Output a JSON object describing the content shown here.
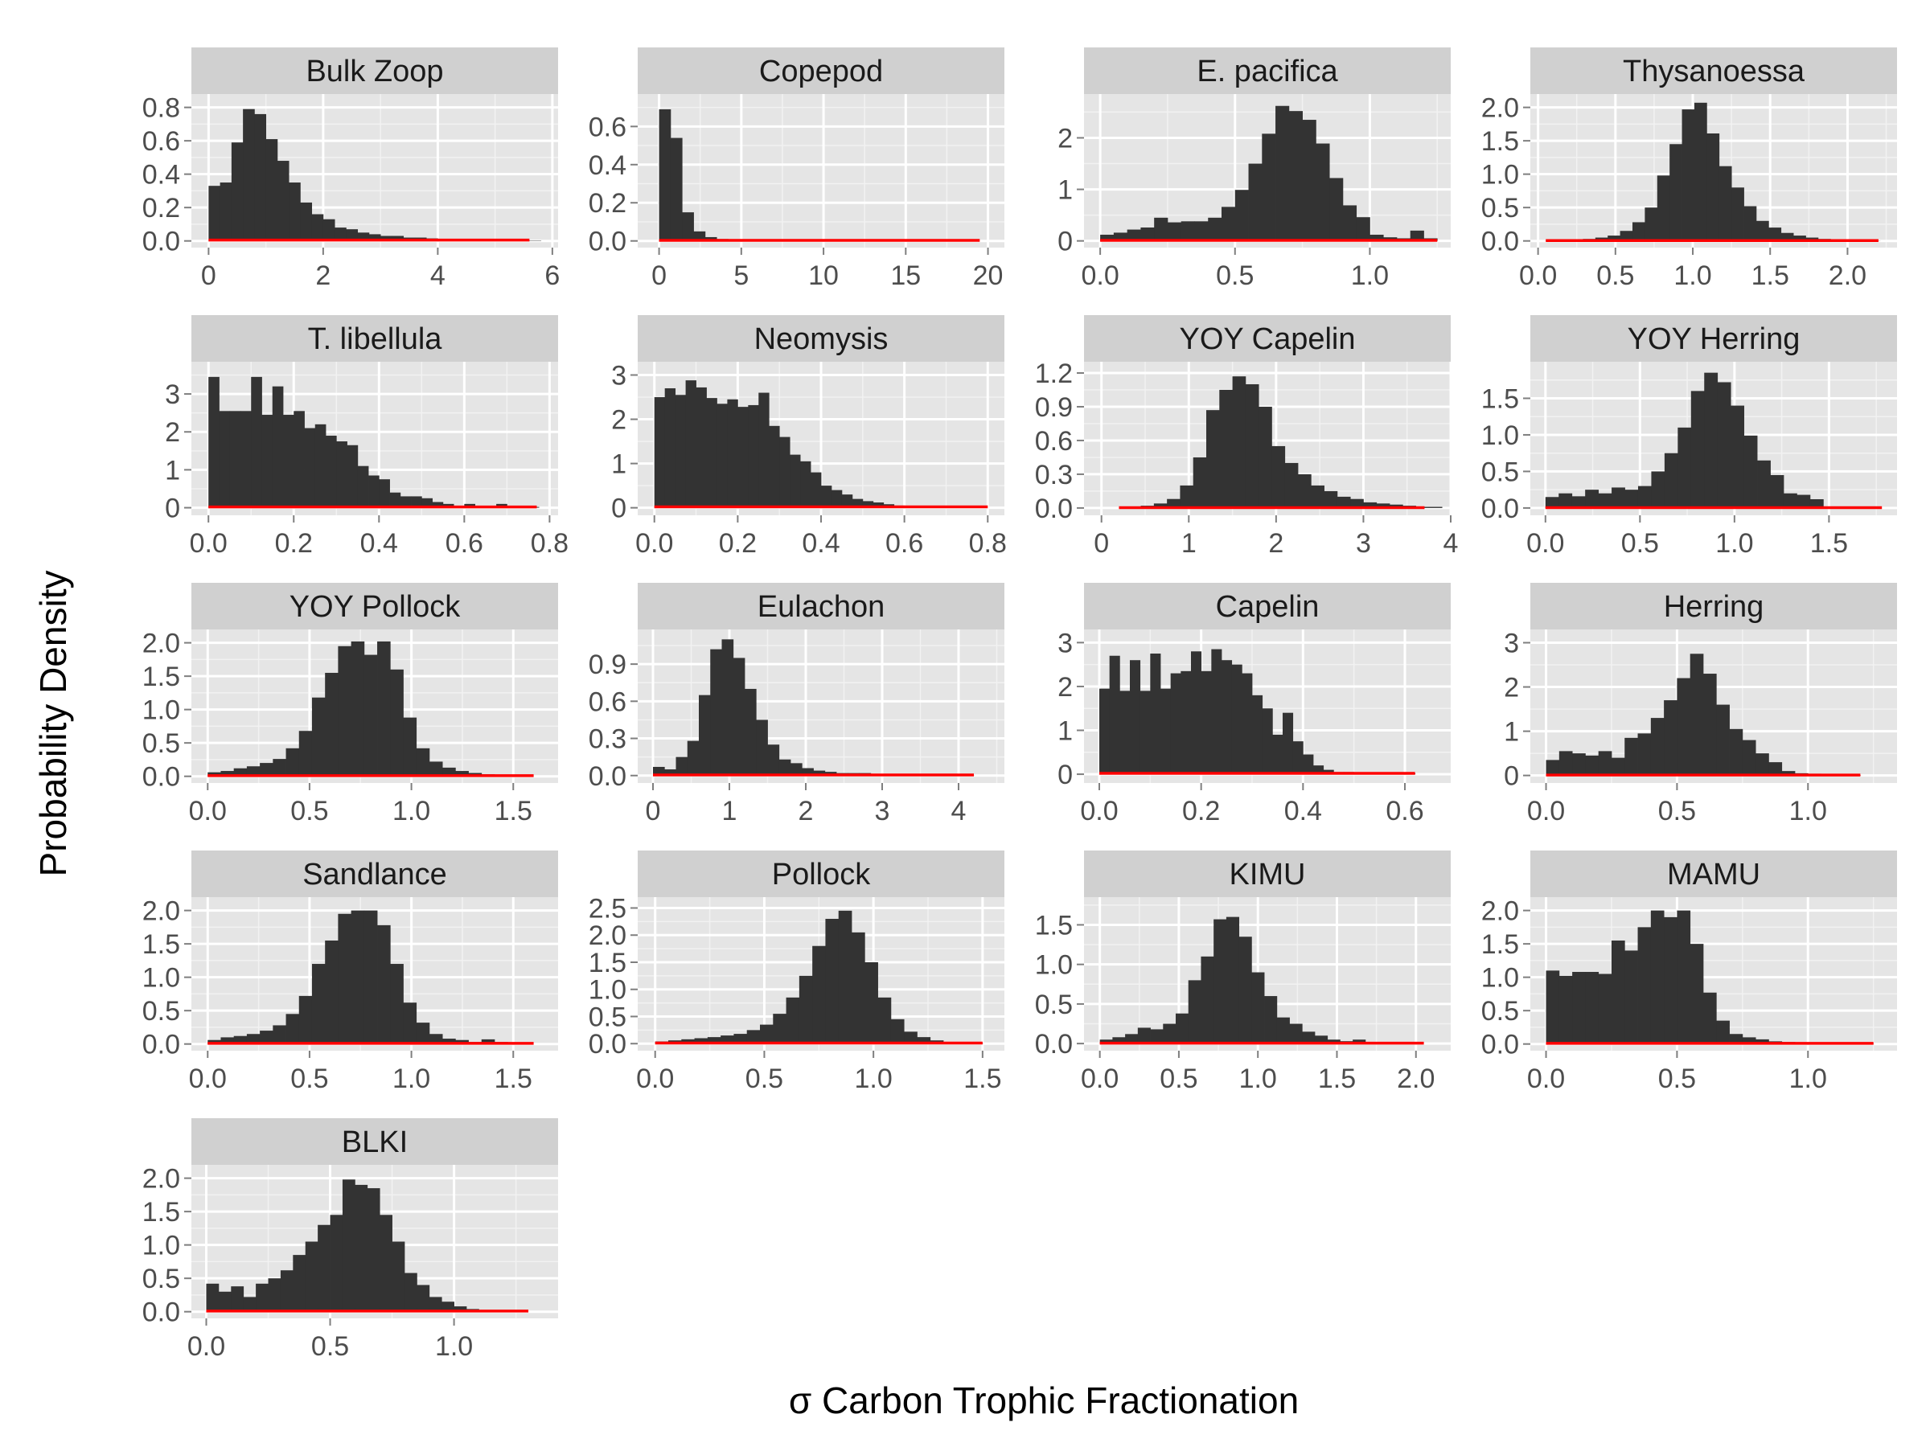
{
  "figure": {
    "ylabel": "Probability Density",
    "xlabel": "σ Carbon Trophic Fractionation"
  },
  "colors": {
    "panel_bg": "#e5e5e5",
    "grid_major": "#ffffff",
    "grid_minor": "#f2f2f2",
    "strip_bg": "#d0d0d0",
    "bar_fill": "#333333",
    "prior_line": "#ff0000",
    "tick_text": "#4d4d4d"
  },
  "chart_data": [
    {
      "type": "histogram",
      "title": "Bulk Zoop",
      "xlim": [
        -0.3,
        6.1
      ],
      "ylim": [
        -0.04,
        0.88
      ],
      "xticks": [
        0,
        2,
        4,
        6
      ],
      "xtick_labels": [
        "0",
        "2",
        "4",
        "6"
      ],
      "yticks": [
        0,
        0.2,
        0.4,
        0.6,
        0.8
      ],
      "ytick_labels": [
        "0.0",
        "0.2",
        "0.4",
        "0.6",
        "0.8"
      ],
      "bin_start": 0,
      "bin_width": 0.2,
      "values": [
        0.33,
        0.35,
        0.59,
        0.79,
        0.76,
        0.61,
        0.48,
        0.35,
        0.23,
        0.16,
        0.13,
        0.08,
        0.07,
        0.05,
        0.04,
        0.03,
        0.03,
        0.02,
        0.02,
        0.015,
        0.01,
        0.01,
        0.008,
        0.006,
        0.005,
        0.004,
        0.003,
        0.002,
        0.002
      ],
      "prior": {
        "x": [
          0,
          5.6
        ],
        "y": [
          0.005,
          0.005
        ]
      }
    },
    {
      "type": "histogram",
      "title": "Copepod",
      "xlim": [
        -1.3,
        21
      ],
      "ylim": [
        -0.035,
        0.77
      ],
      "xticks": [
        0,
        5,
        10,
        15,
        20
      ],
      "xtick_labels": [
        "0",
        "5",
        "10",
        "15",
        "20"
      ],
      "yticks": [
        0,
        0.2,
        0.4,
        0.6
      ],
      "ytick_labels": [
        "0.0",
        "0.2",
        "0.4",
        "0.6"
      ],
      "bin_start": 0,
      "bin_width": 0.7,
      "values": [
        0.69,
        0.54,
        0.15,
        0.05,
        0.02,
        0.01,
        0.006,
        0.004,
        0.003,
        0.002,
        0.002,
        0.001,
        0.001,
        0.001
      ],
      "prior": {
        "x": [
          0,
          19.5
        ],
        "y": [
          0.003,
          0.003
        ]
      }
    },
    {
      "type": "histogram",
      "title": "E. pacifica",
      "xlim": [
        -0.06,
        1.3
      ],
      "ylim": [
        -0.13,
        2.85
      ],
      "xticks": [
        0,
        0.5,
        1
      ],
      "xtick_labels": [
        "0.0",
        "0.5",
        "1.0"
      ],
      "yticks": [
        0,
        1,
        2
      ],
      "ytick_labels": [
        "0",
        "1",
        "2"
      ],
      "bin_start": 0,
      "bin_width": 0.05,
      "values": [
        0.12,
        0.16,
        0.22,
        0.26,
        0.45,
        0.36,
        0.38,
        0.38,
        0.45,
        0.66,
        0.99,
        1.5,
        2.08,
        2.62,
        2.52,
        2.35,
        1.89,
        1.22,
        0.69,
        0.46,
        0.12,
        0.07,
        0.05,
        0.2,
        0.05
      ],
      "prior": {
        "x": [
          0,
          1.25
        ],
        "y": [
          0.01,
          0.01
        ]
      }
    },
    {
      "type": "histogram",
      "title": "Thysanoessa",
      "xlim": [
        -0.05,
        2.32
      ],
      "ylim": [
        -0.1,
        2.2
      ],
      "xticks": [
        0,
        0.5,
        1,
        1.5,
        2
      ],
      "xtick_labels": [
        "0.0",
        "0.5",
        "1.0",
        "1.5",
        "2.0"
      ],
      "yticks": [
        0,
        0.5,
        1,
        1.5,
        2
      ],
      "ytick_labels": [
        "0.0",
        "0.5",
        "1.0",
        "1.5",
        "2.0"
      ],
      "bin_start": 0.05,
      "bin_width": 0.08,
      "values": [
        0.01,
        0.02,
        0.02,
        0.03,
        0.05,
        0.08,
        0.15,
        0.28,
        0.5,
        0.98,
        1.45,
        1.97,
        2.07,
        1.61,
        1.12,
        0.8,
        0.52,
        0.3,
        0.2,
        0.12,
        0.08,
        0.05,
        0.03,
        0.02,
        0.01,
        0.005,
        0.002
      ],
      "prior": {
        "x": [
          0.05,
          2.2
        ],
        "y": [
          0.005,
          0.005
        ]
      }
    },
    {
      "type": "histogram",
      "title": "T. libellula",
      "xlim": [
        -0.04,
        0.82
      ],
      "ylim": [
        -0.2,
        3.85
      ],
      "xticks": [
        0,
        0.2,
        0.4,
        0.6,
        0.8
      ],
      "xtick_labels": [
        "0.0",
        "0.2",
        "0.4",
        "0.6",
        "0.8"
      ],
      "yticks": [
        0,
        1,
        2,
        3
      ],
      "ytick_labels": [
        "0",
        "1",
        "2",
        "3"
      ],
      "bin_start": 0,
      "bin_width": 0.025,
      "values": [
        3.45,
        2.55,
        2.55,
        2.55,
        3.45,
        2.45,
        3.2,
        2.45,
        2.55,
        2.1,
        2.2,
        1.9,
        1.75,
        1.65,
        1.1,
        0.85,
        0.75,
        0.4,
        0.3,
        0.3,
        0.25,
        0.15,
        0.1,
        0.05,
        0.1,
        0.05,
        0.05,
        0.1,
        0.05,
        0.05,
        0.02
      ],
      "prior": {
        "x": [
          0,
          0.77
        ],
        "y": [
          0.02,
          0.02
        ]
      }
    },
    {
      "type": "histogram",
      "title": "Neomysis",
      "xlim": [
        -0.04,
        0.84
      ],
      "ylim": [
        -0.17,
        3.3
      ],
      "xticks": [
        0,
        0.2,
        0.4,
        0.6,
        0.8
      ],
      "xtick_labels": [
        "0.0",
        "0.2",
        "0.4",
        "0.6",
        "0.8"
      ],
      "yticks": [
        0,
        1,
        2,
        3
      ],
      "ytick_labels": [
        "0",
        "1",
        "2",
        "3"
      ],
      "bin_start": 0,
      "bin_width": 0.025,
      "values": [
        2.5,
        2.7,
        2.55,
        2.88,
        2.72,
        2.48,
        2.35,
        2.45,
        2.28,
        2.32,
        2.6,
        1.85,
        1.6,
        1.2,
        1.05,
        0.8,
        0.5,
        0.4,
        0.3,
        0.2,
        0.15,
        0.12,
        0.08,
        0.05
      ],
      "prior": {
        "x": [
          0,
          0.8
        ],
        "y": [
          0.02,
          0.02
        ]
      }
    },
    {
      "type": "histogram",
      "title": "YOY Capelin",
      "xlim": [
        -0.2,
        4
      ],
      "ylim": [
        -0.065,
        1.3
      ],
      "xticks": [
        0,
        1,
        2,
        3,
        4
      ],
      "xtick_labels": [
        "0",
        "1",
        "2",
        "3",
        "4"
      ],
      "yticks": [
        0,
        0.3,
        0.6,
        0.9,
        1.2
      ],
      "ytick_labels": [
        "0.0",
        "0.3",
        "0.6",
        "0.9",
        "1.2"
      ],
      "bin_start": 0.3,
      "bin_width": 0.15,
      "values": [
        0.01,
        0.02,
        0.04,
        0.08,
        0.2,
        0.45,
        0.87,
        1.05,
        1.17,
        1.1,
        0.9,
        0.55,
        0.4,
        0.3,
        0.2,
        0.15,
        0.1,
        0.08,
        0.05,
        0.04,
        0.03,
        0.02,
        0.01,
        0.01
      ],
      "prior": {
        "x": [
          0.2,
          3.7
        ],
        "y": [
          0.003,
          0.003
        ]
      }
    },
    {
      "type": "histogram",
      "title": "YOY Herring",
      "xlim": [
        -0.08,
        1.86
      ],
      "ylim": [
        -0.1,
        2.0
      ],
      "xticks": [
        0,
        0.5,
        1,
        1.5
      ],
      "xtick_labels": [
        "0.0",
        "0.5",
        "1.0",
        "1.5"
      ],
      "yticks": [
        0,
        0.5,
        1,
        1.5
      ],
      "ytick_labels": [
        "0.0",
        "0.5",
        "1.0",
        "1.5"
      ],
      "bin_start": 0,
      "bin_width": 0.07,
      "values": [
        0.15,
        0.2,
        0.16,
        0.25,
        0.2,
        0.28,
        0.25,
        0.3,
        0.5,
        0.75,
        1.1,
        1.6,
        1.85,
        1.72,
        1.4,
        0.99,
        0.65,
        0.45,
        0.2,
        0.18,
        0.12,
        0.02
      ],
      "prior": {
        "x": [
          0,
          1.78
        ],
        "y": [
          0.005,
          0.005
        ]
      }
    },
    {
      "type": "histogram",
      "title": "YOY Pollock",
      "xlim": [
        -0.08,
        1.72
      ],
      "ylim": [
        -0.1,
        2.2
      ],
      "xticks": [
        0,
        0.5,
        1,
        1.5
      ],
      "xtick_labels": [
        "0.0",
        "0.5",
        "1.0",
        "1.5"
      ],
      "yticks": [
        0,
        0.5,
        1,
        1.5,
        2
      ],
      "ytick_labels": [
        "0.0",
        "0.5",
        "1.0",
        "1.5",
        "2.0"
      ],
      "bin_start": 0,
      "bin_width": 0.064,
      "values": [
        0.06,
        0.08,
        0.12,
        0.15,
        0.2,
        0.26,
        0.42,
        0.68,
        1.18,
        1.55,
        1.95,
        2.02,
        1.82,
        2.02,
        1.6,
        0.88,
        0.42,
        0.22,
        0.13,
        0.08,
        0.05,
        0.03,
        0.02
      ],
      "prior": {
        "x": [
          0,
          1.6
        ],
        "y": [
          0.01,
          0.01
        ]
      }
    },
    {
      "type": "histogram",
      "title": "Eulachon",
      "xlim": [
        -0.2,
        4.6
      ],
      "ylim": [
        -0.06,
        1.18
      ],
      "xticks": [
        0,
        1,
        2,
        3,
        4
      ],
      "xtick_labels": [
        "0",
        "1",
        "2",
        "3",
        "4"
      ],
      "yticks": [
        0,
        0.3,
        0.6,
        0.9
      ],
      "ytick_labels": [
        "0.0",
        "0.3",
        "0.6",
        "0.9"
      ],
      "bin_start": 0,
      "bin_width": 0.15,
      "values": [
        0.07,
        0.05,
        0.15,
        0.28,
        0.65,
        1.02,
        1.1,
        0.95,
        0.7,
        0.45,
        0.25,
        0.13,
        0.1,
        0.06,
        0.04,
        0.03,
        0.02,
        0.02,
        0.02,
        0.01,
        0.01,
        0.01,
        0.005,
        0.005,
        0.005,
        0.003,
        0.003,
        0.002
      ],
      "prior": {
        "x": [
          0,
          4.2
        ],
        "y": [
          0.005,
          0.005
        ]
      }
    },
    {
      "type": "histogram",
      "title": "Capelin",
      "xlim": [
        -0.03,
        0.69
      ],
      "ylim": [
        -0.2,
        3.3
      ],
      "xticks": [
        0,
        0.2,
        0.4,
        0.6
      ],
      "xtick_labels": [
        "0.0",
        "0.2",
        "0.4",
        "0.6"
      ],
      "yticks": [
        0,
        1,
        2,
        3
      ],
      "ytick_labels": [
        "0",
        "1",
        "2",
        "3"
      ],
      "bin_start": 0,
      "bin_width": 0.02,
      "values": [
        1.95,
        2.7,
        1.9,
        2.6,
        1.9,
        2.75,
        1.95,
        2.3,
        2.35,
        2.8,
        2.35,
        2.85,
        2.6,
        2.5,
        2.3,
        1.8,
        1.5,
        0.9,
        1.4,
        0.75,
        0.45,
        0.2,
        0.1,
        0.05,
        0.05,
        0.03,
        0.02,
        0.02,
        0.01,
        0.01,
        0.02
      ],
      "prior": {
        "x": [
          0,
          0.62
        ],
        "y": [
          0.02,
          0.02
        ]
      }
    },
    {
      "type": "histogram",
      "title": "Herring",
      "xlim": [
        -0.06,
        1.34
      ],
      "ylim": [
        -0.17,
        3.3
      ],
      "xticks": [
        0,
        0.5,
        1
      ],
      "xtick_labels": [
        "0.0",
        "0.5",
        "1.0"
      ],
      "yticks": [
        0,
        1,
        2,
        3
      ],
      "ytick_labels": [
        "0",
        "1",
        "2",
        "3"
      ],
      "bin_start": 0,
      "bin_width": 0.05,
      "values": [
        0.35,
        0.55,
        0.5,
        0.45,
        0.55,
        0.4,
        0.85,
        0.95,
        1.3,
        1.7,
        2.2,
        2.75,
        2.3,
        1.6,
        1.05,
        0.8,
        0.5,
        0.3,
        0.1,
        0.05,
        0.04,
        0.03,
        0.02,
        0.01
      ],
      "prior": {
        "x": [
          0,
          1.2
        ],
        "y": [
          0.01,
          0.01
        ]
      }
    },
    {
      "type": "histogram",
      "title": "Sandlance",
      "xlim": [
        -0.08,
        1.72
      ],
      "ylim": [
        -0.1,
        2.2
      ],
      "xticks": [
        0,
        0.5,
        1,
        1.5
      ],
      "xtick_labels": [
        "0.0",
        "0.5",
        "1.0",
        "1.5"
      ],
      "yticks": [
        0,
        0.5,
        1,
        1.5,
        2
      ],
      "ytick_labels": [
        "0.0",
        "0.5",
        "1.0",
        "1.5",
        "2.0"
      ],
      "bin_start": 0,
      "bin_width": 0.064,
      "values": [
        0.06,
        0.1,
        0.12,
        0.15,
        0.2,
        0.28,
        0.45,
        0.72,
        1.2,
        1.55,
        1.95,
        2.0,
        2.0,
        1.78,
        1.2,
        0.62,
        0.32,
        0.15,
        0.08,
        0.06,
        0.03,
        0.07,
        0.03
      ],
      "prior": {
        "x": [
          0,
          1.6
        ],
        "y": [
          0.01,
          0.01
        ]
      }
    },
    {
      "type": "histogram",
      "title": "Pollock",
      "xlim": [
        -0.08,
        1.6
      ],
      "ylim": [
        -0.13,
        2.7
      ],
      "xticks": [
        0,
        0.5,
        1,
        1.5
      ],
      "xtick_labels": [
        "0.0",
        "0.5",
        "1.0",
        "1.5"
      ],
      "yticks": [
        0,
        0.5,
        1,
        1.5,
        2,
        2.5
      ],
      "ytick_labels": [
        "0.0",
        "0.5",
        "1.0",
        "1.5",
        "2.0",
        "2.5"
      ],
      "bin_start": 0,
      "bin_width": 0.06,
      "values": [
        0.04,
        0.06,
        0.08,
        0.1,
        0.12,
        0.15,
        0.18,
        0.25,
        0.35,
        0.55,
        0.85,
        1.25,
        1.8,
        2.3,
        2.45,
        2.05,
        1.5,
        0.85,
        0.45,
        0.22,
        0.12,
        0.06,
        0.03,
        0.02,
        0.01
      ],
      "prior": {
        "x": [
          0,
          1.5
        ],
        "y": [
          0.01,
          0.01
        ]
      }
    },
    {
      "type": "histogram",
      "title": "KIMU",
      "xlim": [
        -0.1,
        2.22
      ],
      "ylim": [
        -0.09,
        1.85
      ],
      "xticks": [
        0,
        0.5,
        1,
        1.5,
        2
      ],
      "xtick_labels": [
        "0.0",
        "0.5",
        "1.0",
        "1.5",
        "2.0"
      ],
      "yticks": [
        0,
        0.5,
        1,
        1.5
      ],
      "ytick_labels": [
        "0.0",
        "0.5",
        "1.0",
        "1.5"
      ],
      "bin_start": 0,
      "bin_width": 0.08,
      "values": [
        0.05,
        0.08,
        0.12,
        0.2,
        0.18,
        0.25,
        0.38,
        0.8,
        1.1,
        1.57,
        1.6,
        1.35,
        0.9,
        0.6,
        0.33,
        0.25,
        0.15,
        0.1,
        0.05,
        0.03,
        0.05,
        0.02,
        0.01,
        0.01,
        0.005
      ],
      "prior": {
        "x": [
          0,
          2.05
        ],
        "y": [
          0.005,
          0.005
        ]
      }
    },
    {
      "type": "histogram",
      "title": "MAMU",
      "xlim": [
        -0.06,
        1.34
      ],
      "ylim": [
        -0.1,
        2.2
      ],
      "xticks": [
        0,
        0.5,
        1
      ],
      "xtick_labels": [
        "0.0",
        "0.5",
        "1.0"
      ],
      "yticks": [
        0,
        0.5,
        1,
        1.5,
        2
      ],
      "ytick_labels": [
        "0.0",
        "0.5",
        "1.0",
        "1.5",
        "2.0"
      ],
      "bin_start": 0,
      "bin_width": 0.05,
      "values": [
        1.1,
        1.02,
        1.08,
        1.08,
        1.05,
        1.55,
        1.4,
        1.75,
        2.0,
        1.9,
        2.0,
        1.5,
        0.77,
        0.35,
        0.15,
        0.1,
        0.07,
        0.04,
        0.03,
        0.02,
        0.02,
        0.01,
        0.01,
        0.01,
        0.005
      ],
      "prior": {
        "x": [
          0,
          1.25
        ],
        "y": [
          0.01,
          0.01
        ]
      }
    },
    {
      "type": "histogram",
      "title": "BLKI",
      "xlim": [
        -0.06,
        1.42
      ],
      "ylim": [
        -0.1,
        2.2
      ],
      "xticks": [
        0,
        0.5,
        1
      ],
      "xtick_labels": [
        "0.0",
        "0.5",
        "1.0"
      ],
      "yticks": [
        0,
        0.5,
        1,
        1.5,
        2
      ],
      "ytick_labels": [
        "0.0",
        "0.5",
        "1.0",
        "1.5",
        "2.0"
      ],
      "bin_start": 0,
      "bin_width": 0.05,
      "values": [
        0.42,
        0.3,
        0.38,
        0.22,
        0.42,
        0.5,
        0.62,
        0.85,
        1.05,
        1.3,
        1.45,
        1.98,
        1.9,
        1.85,
        1.45,
        1.05,
        0.58,
        0.4,
        0.22,
        0.15,
        0.08,
        0.04,
        0.02,
        0.01,
        0.005
      ],
      "prior": {
        "x": [
          0,
          1.3
        ],
        "y": [
          0.01,
          0.01
        ]
      }
    }
  ]
}
